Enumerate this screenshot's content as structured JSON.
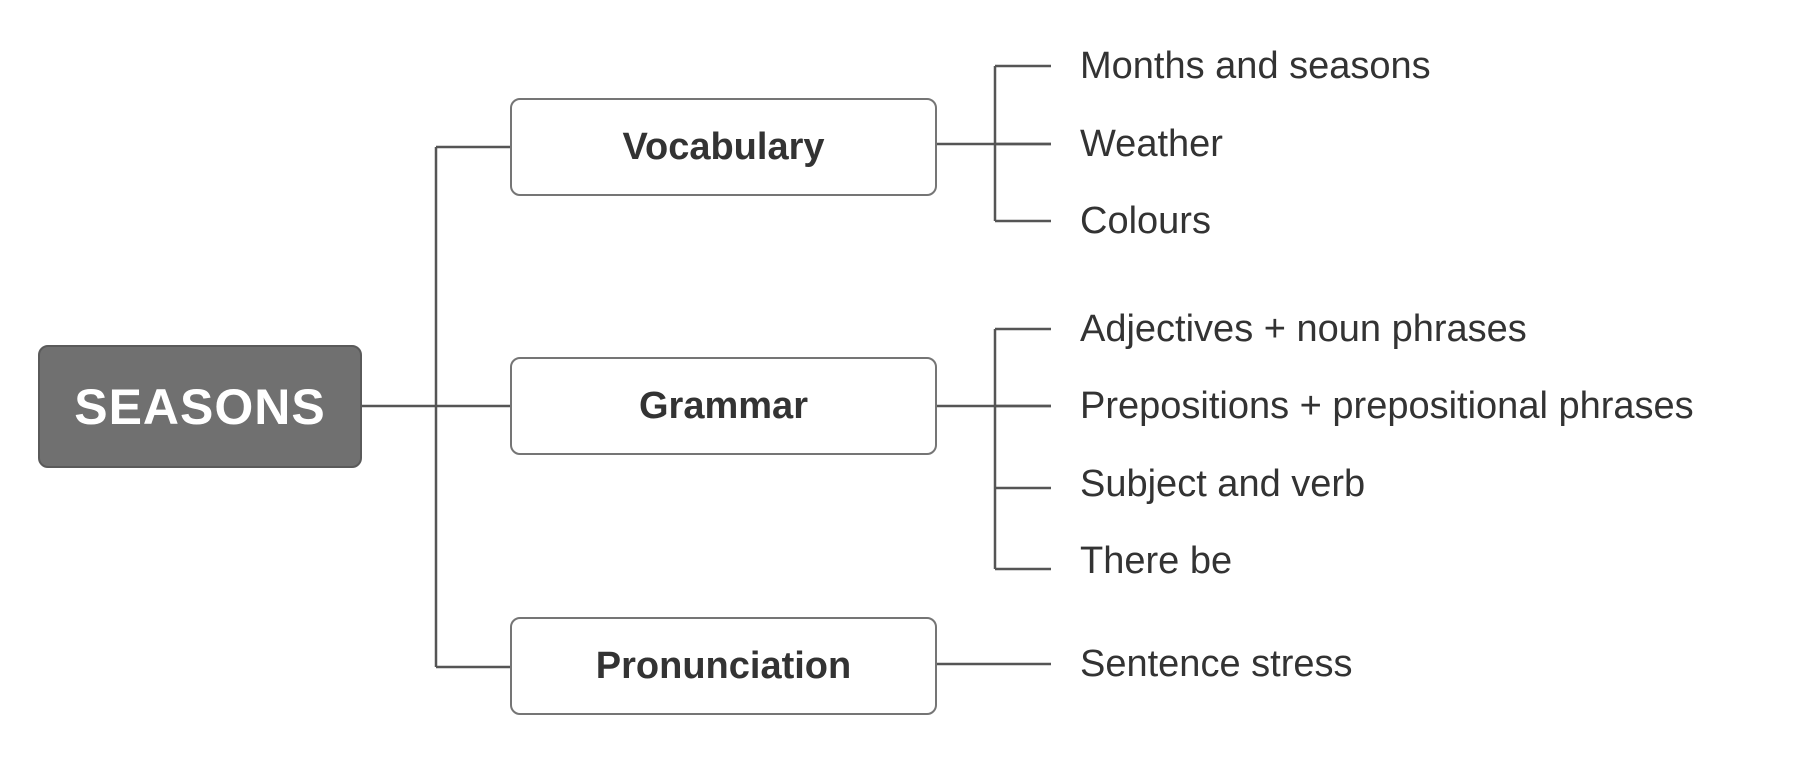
{
  "root": {
    "label": "SEASONS"
  },
  "branches": [
    {
      "label": "Vocabulary",
      "items": [
        "Months and seasons",
        "Weather",
        "Colours"
      ]
    },
    {
      "label": "Grammar",
      "items": [
        "Adjectives + noun phrases",
        "Prepositions + prepositional phrases",
        "Subject and verb",
        "There be"
      ]
    },
    {
      "label": "Pronunciation",
      "items": [
        "Sentence stress"
      ]
    }
  ],
  "colors": {
    "root_fill": "#707070",
    "root_text": "#ffffff",
    "line": "#555555",
    "node_border": "#757575",
    "text": "#333333"
  }
}
